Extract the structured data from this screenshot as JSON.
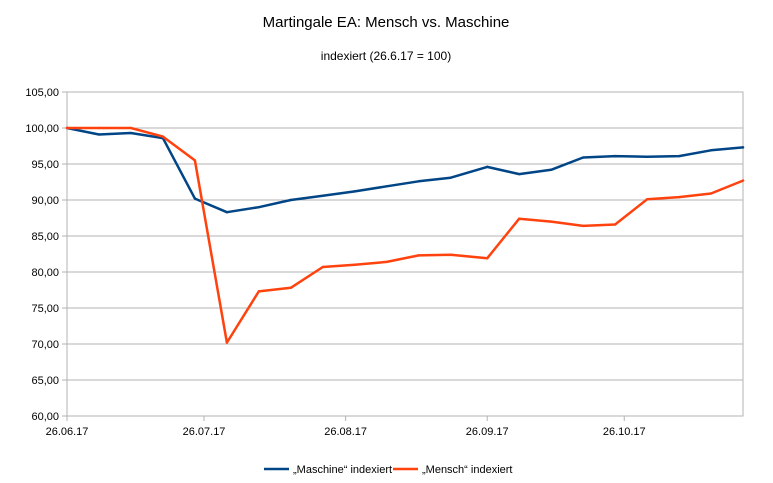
{
  "chart_data": {
    "type": "line",
    "title": "Martingale EA: Mensch vs. Maschine",
    "subtitle": "indexiert (26.6.17 = 100)",
    "xlabel": "",
    "ylabel": "",
    "ylim": [
      60,
      105
    ],
    "yticks": [
      "60,00",
      "65,00",
      "70,00",
      "75,00",
      "80,00",
      "85,00",
      "90,00",
      "95,00",
      "100,00",
      "105,00"
    ],
    "xticks": [
      "26.06.17",
      "26.07.17",
      "26.08.17",
      "26.09.17",
      "26.10.17"
    ],
    "xtick_days": [
      0,
      30,
      61,
      92,
      122
    ],
    "grid": true,
    "legend_position": "bottom",
    "x_days": [
      0,
      7,
      14,
      21,
      28,
      35,
      42,
      49,
      56,
      63,
      70,
      77,
      84,
      92,
      99,
      106,
      113,
      120,
      127,
      134,
      141,
      148
    ],
    "series": [
      {
        "name": "„Maschine“ indexiert",
        "color": "#004586",
        "values": [
          100.0,
          99.1,
          99.3,
          98.6,
          90.2,
          88.3,
          89.0,
          90.0,
          90.6,
          91.2,
          91.9,
          92.6,
          93.1,
          94.6,
          93.6,
          94.2,
          95.9,
          96.1,
          96.0,
          96.1,
          96.9,
          97.3
        ]
      },
      {
        "name": "„Mensch“ indexiert",
        "color": "#ff420e",
        "values": [
          100.0,
          100.0,
          100.0,
          98.8,
          95.5,
          70.2,
          77.3,
          77.8,
          80.7,
          81.0,
          81.4,
          82.3,
          82.4,
          81.9,
          87.4,
          87.0,
          86.4,
          86.6,
          90.1,
          90.4,
          90.9,
          92.7
        ]
      }
    ]
  }
}
